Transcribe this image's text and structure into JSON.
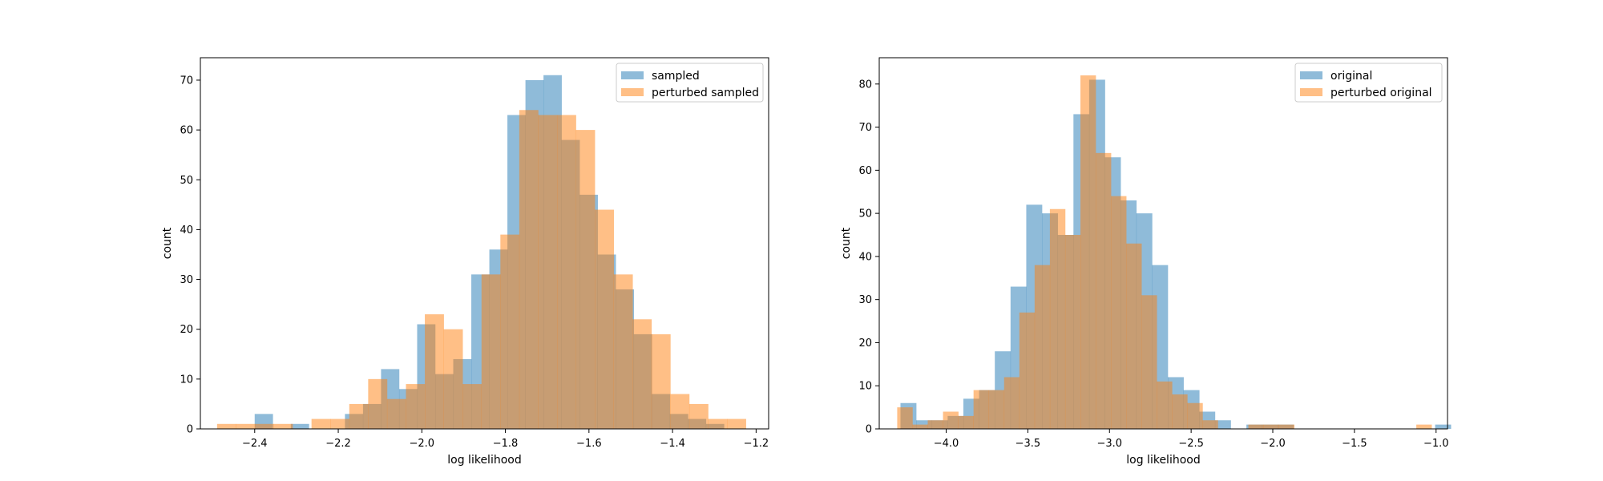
{
  "chart_data": [
    {
      "type": "bar",
      "subtype": "overlaid-histogram",
      "title": "",
      "xlabel": "log likelihood",
      "ylabel": "count",
      "xlim": [
        -2.53,
        -1.17
      ],
      "ylim": [
        0,
        74.5
      ],
      "xticks": [
        -2.4,
        -2.2,
        -2.0,
        -1.8,
        -1.6,
        -1.4,
        -1.2
      ],
      "xtick_labels": [
        "−2.4",
        "−2.2",
        "−2.0",
        "−1.8",
        "−1.6",
        "−1.4",
        "−1.2"
      ],
      "yticks": [
        0,
        10,
        20,
        30,
        40,
        50,
        60,
        70
      ],
      "ytick_labels": [
        "0",
        "10",
        "20",
        "30",
        "40",
        "50",
        "60",
        "70"
      ],
      "grid": false,
      "legend_position": "top-right",
      "series": [
        {
          "name": "sampled",
          "color": "#1f77b4",
          "alpha": 0.5,
          "bin_start": -2.4,
          "bin_width": 0.0432,
          "values": [
            3,
            0,
            1,
            0,
            0,
            3,
            5,
            12,
            8,
            21,
            11,
            14,
            31,
            36,
            63,
            70,
            71,
            58,
            47,
            35,
            28,
            19,
            7,
            3,
            2,
            1
          ]
        },
        {
          "name": "perturbed sampled",
          "color": "#ff7f0e",
          "alpha": 0.5,
          "bin_start": -2.49,
          "bin_width": 0.0452,
          "values": [
            1,
            1,
            1,
            1,
            0,
            2,
            2,
            5,
            10,
            6,
            9,
            23,
            20,
            9,
            31,
            39,
            64,
            63,
            63,
            60,
            44,
            31,
            22,
            19,
            7,
            5,
            2,
            2
          ]
        }
      ]
    },
    {
      "type": "bar",
      "subtype": "overlaid-histogram",
      "title": "",
      "xlabel": "log likelihood",
      "ylabel": "count",
      "xlim": [
        -4.41,
        -0.93
      ],
      "ylim": [
        0,
        86.1
      ],
      "xticks": [
        -4.0,
        -3.5,
        -3.0,
        -2.5,
        -2.0,
        -1.5,
        -1.0
      ],
      "xtick_labels": [
        "−4.0",
        "−3.5",
        "−3.0",
        "−2.5",
        "−2.0",
        "−1.5",
        "−1.0"
      ],
      "yticks": [
        0,
        10,
        20,
        30,
        40,
        50,
        60,
        70,
        80
      ],
      "ytick_labels": [
        "0",
        "10",
        "20",
        "30",
        "40",
        "50",
        "60",
        "70",
        "80"
      ],
      "grid": false,
      "legend_position": "top-right",
      "series": [
        {
          "name": "original",
          "color": "#1f77b4",
          "alpha": 0.5,
          "bin_start": -4.28,
          "bin_width": 0.0963,
          "values": [
            6,
            2,
            2,
            3,
            7,
            9,
            18,
            33,
            52,
            50,
            45,
            73,
            81,
            63,
            53,
            50,
            38,
            12,
            9,
            4,
            2,
            0,
            1,
            1,
            1,
            0,
            0,
            0,
            0,
            0,
            0,
            0,
            0,
            0,
            1
          ]
        },
        {
          "name": "perturbed original",
          "color": "#ff7f0e",
          "alpha": 0.5,
          "bin_start": -4.3,
          "bin_width": 0.0935,
          "values": [
            5,
            1,
            2,
            4,
            3,
            9,
            9,
            12,
            27,
            38,
            51,
            45,
            82,
            64,
            54,
            43,
            31,
            11,
            8,
            6,
            2,
            0,
            0,
            1,
            1,
            1,
            0,
            0,
            0,
            0,
            0,
            0,
            0,
            0,
            1
          ]
        }
      ]
    }
  ]
}
